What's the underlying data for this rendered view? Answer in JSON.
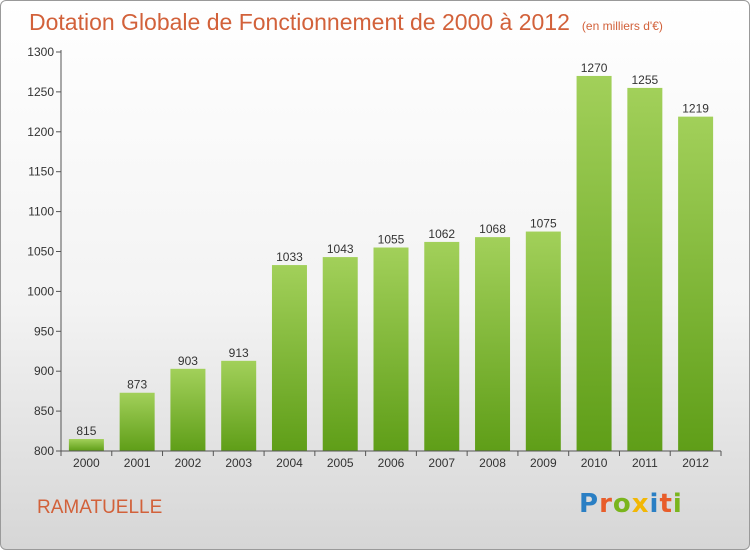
{
  "header": {
    "title": "Dotation Globale de Fonctionnement de 2000 à 2012",
    "unit": "(en milliers d'€)"
  },
  "footer": {
    "town": "RAMATUELLE",
    "logo_letters": [
      "P",
      "r",
      "o",
      "x",
      "i",
      "t",
      "i"
    ],
    "logo_colors": [
      "#2a7fc4",
      "#e85d2a",
      "#7ab51d",
      "#f2b705",
      "#2a7fc4",
      "#e85d2a",
      "#7ab51d"
    ]
  },
  "chart_data": {
    "type": "bar",
    "title": "Dotation Globale de Fonctionnement de 2000 à 2012",
    "subtitle": "(en milliers d'€)",
    "categories": [
      "2000",
      "2001",
      "2002",
      "2003",
      "2004",
      "2005",
      "2006",
      "2007",
      "2008",
      "2009",
      "2010",
      "2011",
      "2012"
    ],
    "values": [
      815,
      873,
      903,
      913,
      1033,
      1043,
      1055,
      1062,
      1068,
      1075,
      1270,
      1255,
      1219
    ],
    "ylim": [
      800,
      1300
    ],
    "yticks": [
      800,
      850,
      900,
      950,
      1000,
      1050,
      1100,
      1150,
      1200,
      1250,
      1300
    ],
    "xlabel": "",
    "ylabel": "",
    "grid": false,
    "bar_color_top": "#a2d05a",
    "bar_color_bottom": "#5f9e18"
  }
}
